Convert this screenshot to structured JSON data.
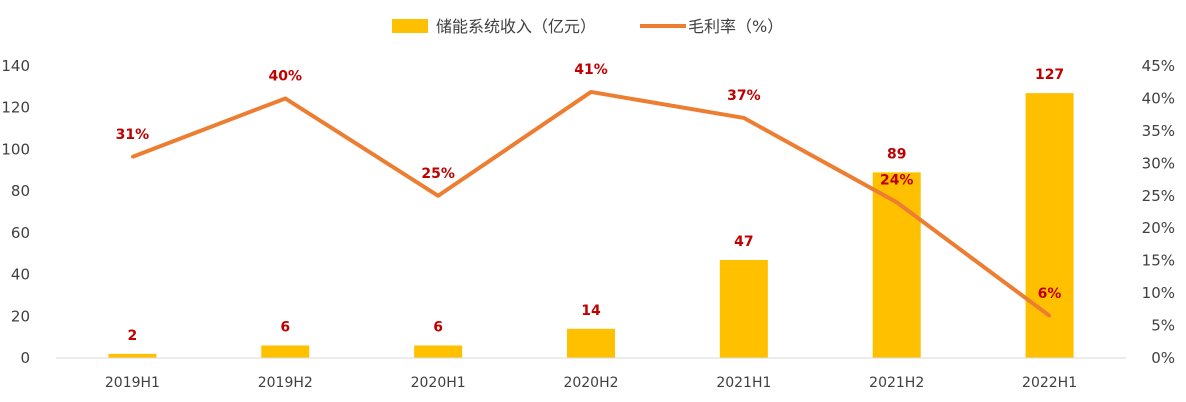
{
  "chart_data": {
    "type": "bar",
    "categories": [
      "2019H1",
      "2019H2",
      "2020H1",
      "2020H2",
      "2021H1",
      "2021H2",
      "2022H1"
    ],
    "series": [
      {
        "name": "储能系统收入（亿元）",
        "kind": "bar",
        "axis": "left",
        "values": [
          2,
          6,
          6,
          14,
          47,
          89,
          127
        ],
        "labels": [
          "2",
          "6",
          "6",
          "14",
          "47",
          "89",
          "127"
        ],
        "color": "#ffc000"
      },
      {
        "name": "毛利率（%）",
        "kind": "line",
        "axis": "right",
        "values": [
          31,
          40,
          25,
          41,
          37,
          24,
          6.5
        ],
        "labels": [
          "31%",
          "40%",
          "25%",
          "41%",
          "37%",
          "24%",
          "6%"
        ],
        "color": "#ed7d31"
      }
    ],
    "left_axis": {
      "min": 0,
      "max": 140,
      "step": 20
    },
    "right_axis": {
      "min": 0,
      "max": 45,
      "step": 5,
      "suffix": "%"
    },
    "legend": {
      "position": "top"
    },
    "grid": false,
    "label_color": "#c00000",
    "axis_color": "#d9d9d9"
  }
}
